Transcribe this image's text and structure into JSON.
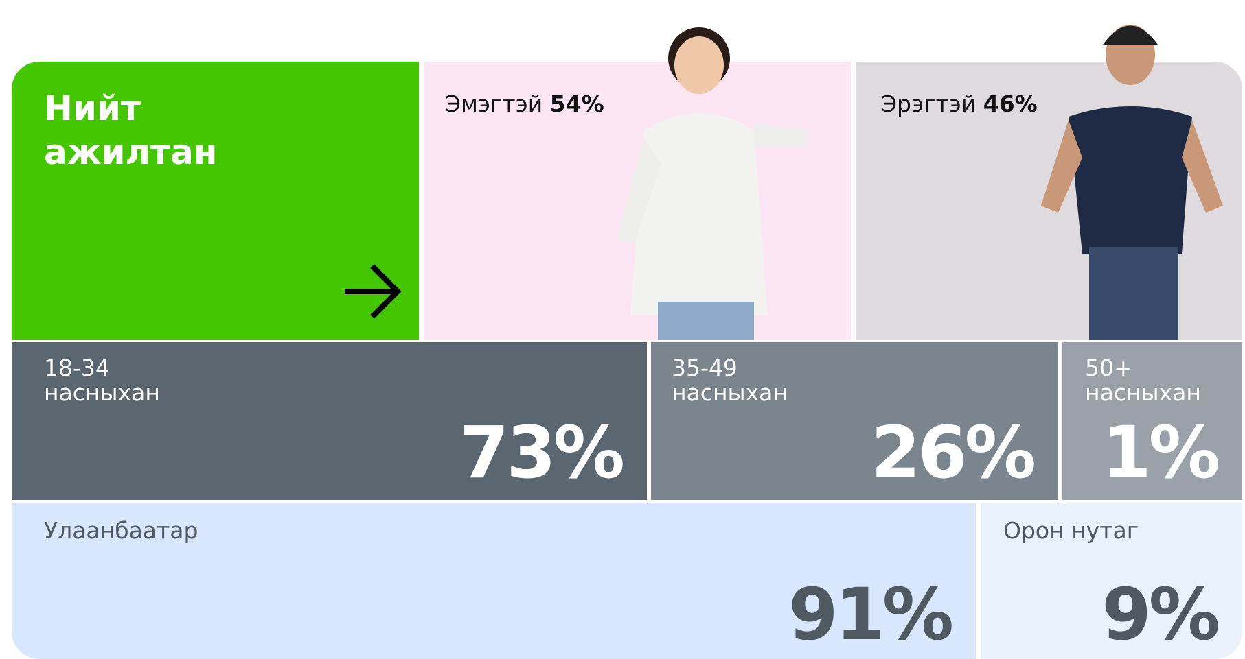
{
  "total": {
    "line1": "Нийт",
    "line2": "ажилтан"
  },
  "gender": [
    {
      "label": "Эмэгтэй",
      "value": "54%"
    },
    {
      "label": "Эрэгтэй",
      "value": "46%"
    }
  ],
  "age": [
    {
      "range": "18-34",
      "label": "насныхан",
      "value": "73%"
    },
    {
      "range": "35-49",
      "label": "насныхан",
      "value": "26%"
    },
    {
      "range": "50+",
      "label": "насныхан",
      "value": "1%"
    }
  ],
  "location": [
    {
      "label": "Улаанбаатар",
      "value": "91%"
    },
    {
      "label": "Орон нутаг",
      "value": "9%"
    }
  ]
}
